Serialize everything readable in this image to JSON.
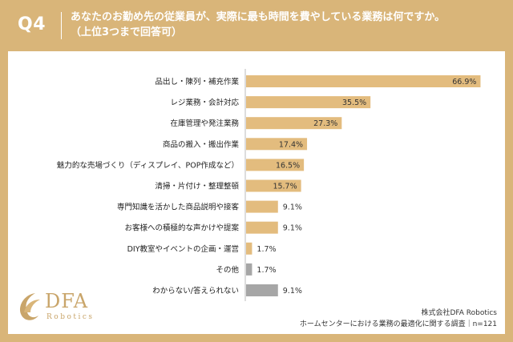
{
  "header": {
    "badge": "Q4",
    "title_line1": "あなたのお勤め先の従業員が、実際に最も時間を費やしている業務は何ですか。",
    "title_line2": "（上位3つまで回答可）"
  },
  "colors": {
    "background": "#d9b579",
    "bar": "#e3bc7e",
    "bar_gray": "#a6a6a6",
    "label_text": "#222222"
  },
  "logo": {
    "main": "DFA",
    "sub": "Robotics",
    "icon": "swirl-logo-icon"
  },
  "source": {
    "company": "株式会社DFA Robotics",
    "survey": "ホームセンターにおける業務の最適化に関する調査｜n=121"
  },
  "chart_data": {
    "type": "bar",
    "orientation": "horizontal",
    "categories": [
      "品出し・陳列・補充作業",
      "レジ業務・会計対応",
      "在庫管理や発注業務",
      "商品の搬入・搬出作業",
      "魅力的な売場づくり（ディスプレイ、POP作成など）",
      "清掃・片付け・整理整頓",
      "専門知識を活かした商品説明や接客",
      "お客様への積極的な声かけや提案",
      "DIY教室やイベントの企画・運営",
      "その他",
      "わからない/答えられない"
    ],
    "values": [
      66.9,
      35.5,
      27.3,
      17.4,
      16.5,
      15.7,
      9.1,
      9.1,
      1.7,
      1.7,
      9.1
    ],
    "value_labels": [
      "66.9%",
      "35.5%",
      "27.3%",
      "17.4%",
      "16.5%",
      "15.7%",
      "9.1%",
      "9.1%",
      "1.7%",
      "1.7%",
      "9.1%"
    ],
    "bar_colors": [
      "#e3bc7e",
      "#e3bc7e",
      "#e3bc7e",
      "#e3bc7e",
      "#e3bc7e",
      "#e3bc7e",
      "#e3bc7e",
      "#e3bc7e",
      "#e3bc7e",
      "#a6a6a6",
      "#a6a6a6"
    ],
    "xlim": [
      0,
      70
    ],
    "title": "",
    "xlabel": "",
    "ylabel": "",
    "grid": false,
    "legend": "none"
  }
}
